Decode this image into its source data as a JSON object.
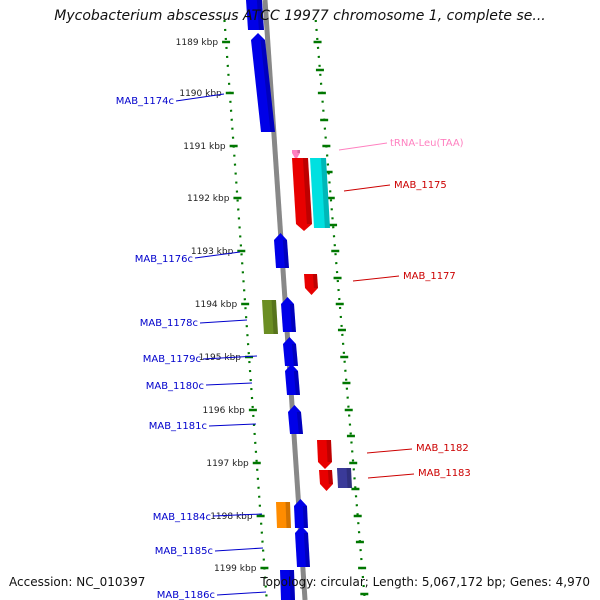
{
  "title": "Mycobacterium abscessus ATCC 19977 chromosome 1, complete se...",
  "footer": {
    "accession": "Accession: NC_010397",
    "topology": "Topology: circular; Length: 5,067,172 bp; Genes: 4,970"
  },
  "colors": {
    "strand_minus": "#0000e8",
    "strand_plus": "#e80000",
    "trna": "#ff80c0",
    "label_minus": "#0000cc",
    "label_plus": "#cc0000",
    "label_trna": "#ff80c0",
    "tick": "#007700",
    "axis": "#888888",
    "tick_label": "#222222"
  },
  "ticks": [
    {
      "label": "1189 kbp"
    },
    {
      "label": "1190 kbp"
    },
    {
      "label": "1191 kbp"
    },
    {
      "label": "1192 kbp"
    },
    {
      "label": "1193 kbp"
    },
    {
      "label": "1194 kbp"
    },
    {
      "label": "1195 kbp"
    },
    {
      "label": "1196 kbp"
    },
    {
      "label": "1197 kbp"
    },
    {
      "label": "1198 kbp"
    },
    {
      "label": "1199 kbp"
    }
  ],
  "genes": [
    {
      "name": "MAB_1174c",
      "strand": "minus",
      "color": "#0000e8"
    },
    {
      "name": "tRNA-Leu(TAA)",
      "strand": "plus",
      "color": "#ff80c0"
    },
    {
      "name": "MAB_1175",
      "strand": "plus",
      "color": "#e80000"
    },
    {
      "name": "MAB_1176c",
      "strand": "minus",
      "color": "#0000e8"
    },
    {
      "name": "MAB_1177",
      "strand": "plus",
      "color": "#e80000"
    },
    {
      "name": "MAB_1178c",
      "strand": "minus",
      "color": "#6b8e23"
    },
    {
      "name": "MAB_1179c",
      "strand": "minus",
      "color": "#0000e8"
    },
    {
      "name": "MAB_1180c",
      "strand": "minus",
      "color": "#0000e8"
    },
    {
      "name": "MAB_1181c",
      "strand": "minus",
      "color": "#0000e8"
    },
    {
      "name": "MAB_1182",
      "strand": "plus",
      "color": "#e80000"
    },
    {
      "name": "MAB_1183",
      "strand": "plus",
      "color": "#e80000"
    },
    {
      "name": "MAB_1184c",
      "strand": "minus",
      "color": "#ff8c00"
    },
    {
      "name": "MAB_1185c",
      "strand": "minus",
      "color": "#0000e8"
    },
    {
      "name": "MAB_1186c",
      "strand": "minus",
      "color": "#0000e8"
    }
  ],
  "extra_features": [
    {
      "strand": "plus",
      "color": "#00e0e0"
    },
    {
      "strand": "plus",
      "color": "#3a3a99"
    },
    {
      "strand": "minus",
      "color": "#0000e8"
    }
  ]
}
